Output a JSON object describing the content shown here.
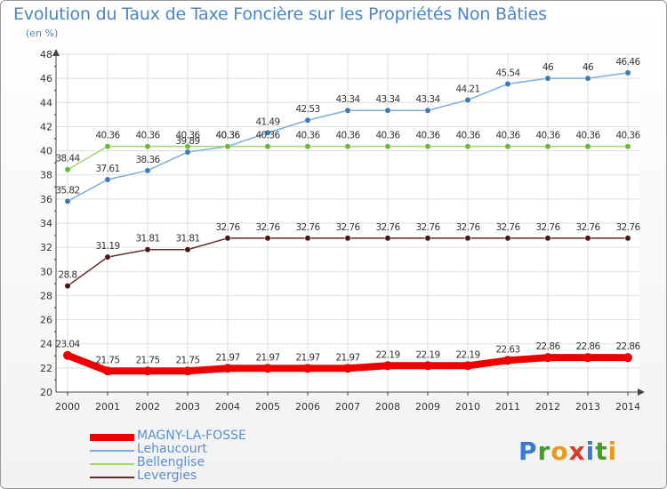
{
  "title": "Evolution du Taux de Taxe Foncière sur les Propriétés Non Bâties",
  "unit_label": "(en %)",
  "logo": {
    "text": "Proxiti",
    "letters": [
      {
        "ch": "P",
        "color": "#3a7bd5"
      },
      {
        "ch": "r",
        "color": "#4a9a2a"
      },
      {
        "ch": "o",
        "color": "#e89a1a"
      },
      {
        "ch": "x",
        "color": "#d83a2a"
      },
      {
        "ch": "i",
        "color": "#3a7bd5"
      },
      {
        "ch": "t",
        "color": "#4a9a2a"
      },
      {
        "ch": "i",
        "color": "#e89a1a"
      }
    ]
  },
  "chart_data": {
    "type": "line",
    "title": "Evolution du Taux de Taxe Foncière sur les Propriétés Non Bâties",
    "ylabel": "(en %)",
    "xlabel": "",
    "categories": [
      "2000",
      "2001",
      "2002",
      "2003",
      "2004",
      "2005",
      "2006",
      "2007",
      "2008",
      "2009",
      "2010",
      "2011",
      "2012",
      "2013",
      "2014"
    ],
    "ylim": [
      20,
      48
    ],
    "yticks": [
      20,
      22,
      24,
      26,
      28,
      30,
      32,
      34,
      36,
      38,
      40,
      42,
      44,
      46,
      48
    ],
    "grid": true,
    "legend_position": "bottom-left",
    "series": [
      {
        "name": "MAGNY-LA-FOSSE",
        "color": "#ee0000",
        "width": 8,
        "values": [
          23.04,
          21.75,
          21.75,
          21.75,
          21.97,
          21.97,
          21.97,
          21.97,
          22.19,
          22.19,
          22.19,
          22.63,
          22.86,
          22.86,
          22.86
        ],
        "labels": [
          "23.04",
          "21.75",
          "21.75",
          "21.75",
          "21.97",
          "21.97",
          "21.97",
          "21.97",
          "22.19",
          "22.19",
          "22.19",
          "22.63",
          "22.86",
          "22.86",
          "22.86"
        ]
      },
      {
        "name": "Lehaucourt",
        "color": "#7aaedc",
        "marker": "#3a7ab8",
        "values": [
          35.82,
          37.61,
          38.36,
          39.89,
          40.36,
          41.49,
          42.53,
          43.34,
          43.34,
          43.34,
          44.21,
          45.54,
          46,
          46,
          46.46
        ],
        "labels": [
          "35.82",
          "37.61",
          "38.36",
          "39.89",
          "40.36",
          "41.49",
          "42.53",
          "43.34",
          "43.34",
          "43.34",
          "44.21",
          "45.54",
          "46",
          "46",
          "46.46"
        ]
      },
      {
        "name": "Bellenglise",
        "color": "#a4d670",
        "marker": "#6cb63a",
        "values": [
          38.44,
          40.36,
          40.36,
          40.36,
          40.36,
          40.36,
          40.36,
          40.36,
          40.36,
          40.36,
          40.36,
          40.36,
          40.36,
          40.36,
          40.36
        ],
        "labels": [
          "38.44",
          "40.36",
          "40.36",
          "40.36",
          "40.36",
          "40.36",
          "40.36",
          "40.36",
          "40.36",
          "40.36",
          "40.36",
          "40.36",
          "40.36",
          "40.36",
          "40.36"
        ]
      },
      {
        "name": "Levergies",
        "color": "#6a2828",
        "marker": "#4a1414",
        "values": [
          28.8,
          31.19,
          31.81,
          31.81,
          32.76,
          32.76,
          32.76,
          32.76,
          32.76,
          32.76,
          32.76,
          32.76,
          32.76,
          32.76,
          32.76
        ],
        "labels": [
          "28.8",
          "31.19",
          "31.81",
          "31.81",
          "32.76",
          "32.76",
          "32.76",
          "32.76",
          "32.76",
          "32.76",
          "32.76",
          "32.76",
          "32.76",
          "32.76",
          "32.76"
        ]
      }
    ]
  }
}
